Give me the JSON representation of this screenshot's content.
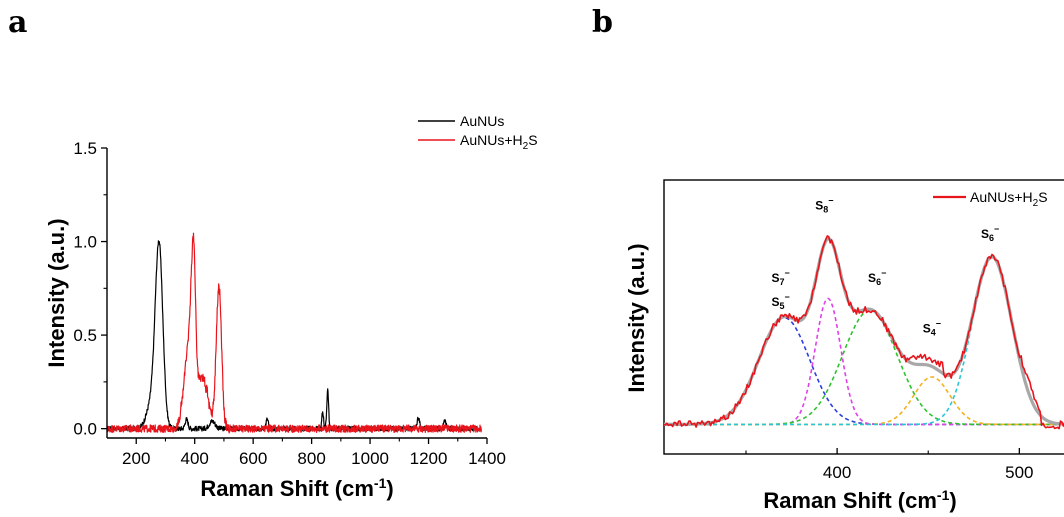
{
  "panels": {
    "a": {
      "letter": "a"
    },
    "b": {
      "letter": "b"
    }
  },
  "chart_data": [
    {
      "type": "line",
      "panel": "a",
      "xlabel_main": "Raman Shift (cm",
      "xlabel_sup": "-1",
      "xlabel_end": ")",
      "ylabel": "Intensity (a.u.)",
      "xlim": [
        100,
        1400
      ],
      "ylim": [
        -0.05,
        1.5
      ],
      "xticks": [
        200,
        400,
        600,
        800,
        1000,
        1200,
        1400
      ],
      "xtick_labels": [
        "200",
        "400",
        "600",
        "800",
        "1000",
        "1200",
        "1400"
      ],
      "yticks": [
        0.0,
        0.5,
        1.0,
        1.5
      ],
      "ytick_labels": [
        "0.0",
        "0.5",
        "1.0",
        "1.5"
      ],
      "legend_position": "top-right",
      "series": [
        {
          "name": "AuNUs",
          "color": "#000000",
          "noise": 0.013,
          "peaks": [
            {
              "x": 278,
              "height": 0.98,
              "width": 13
            },
            {
              "x": 250,
              "height": 0.12,
              "width": 16
            },
            {
              "x": 372,
              "height": 0.05,
              "width": 5
            },
            {
              "x": 460,
              "height": 0.04,
              "width": 10
            },
            {
              "x": 648,
              "height": 0.05,
              "width": 4
            },
            {
              "x": 838,
              "height": 0.09,
              "width": 3
            },
            {
              "x": 855,
              "height": 0.21,
              "width": 3
            },
            {
              "x": 1165,
              "height": 0.06,
              "width": 4
            },
            {
              "x": 1255,
              "height": 0.05,
              "width": 4
            }
          ]
        },
        {
          "name_main": "AuNUs+H",
          "name_sub": "2",
          "name_end": "S",
          "color": "#e8141c",
          "noise": 0.02,
          "peaks": [
            {
              "x": 362,
              "height": 0.12,
              "width": 10
            },
            {
              "x": 382,
              "height": 0.45,
              "width": 12
            },
            {
              "x": 396,
              "height": 0.7,
              "width": 7
            },
            {
              "x": 425,
              "height": 0.28,
              "width": 20
            },
            {
              "x": 483,
              "height": 0.75,
              "width": 9
            }
          ]
        }
      ]
    },
    {
      "type": "line",
      "panel": "b",
      "xlabel_main": "Raman Shift (cm",
      "xlabel_sup": "-1",
      "xlabel_end": ")",
      "ylabel": "Intensity (a.u.)",
      "xlim": [
        305,
        530
      ],
      "ylim": [
        -0.2,
        1.65
      ],
      "xticks": [
        400,
        500
      ],
      "xtick_labels": [
        "400",
        "500"
      ],
      "minor_xticks": [
        350,
        450
      ],
      "legend_position": "top-right",
      "legend": {
        "name_main": "AuNUs+H",
        "name_sub": "2",
        "name_end": "S",
        "color": "#e8141c"
      },
      "components": [
        {
          "label_main": "S",
          "label_sub": "7",
          "label_sup": "−",
          "center": 371,
          "height": 0.72,
          "width": 14,
          "color": "#2b3ee0"
        },
        {
          "label_main": "S",
          "label_sub": "8",
          "label_sup": "−",
          "center": 395,
          "height": 0.85,
          "width": 7,
          "color": "#e040e8"
        },
        {
          "label_main": "S",
          "label_sub": "6",
          "label_sup": "−",
          "center": 418,
          "height": 0.77,
          "width": 15,
          "color": "#2ec22e"
        },
        {
          "label_main": "S",
          "label_sub": "4",
          "label_sup": "−",
          "center": 452,
          "height": 0.32,
          "width": 10,
          "color": "#f2b21c"
        },
        {
          "label_main": "S",
          "label_sub": "6",
          "label_sup": "−",
          "center": 485,
          "height": 1.13,
          "width": 11,
          "color": "#2bc6d4"
        }
      ],
      "peak_labels": [
        {
          "main": "S",
          "sub": "7",
          "sup": "−",
          "x": 369,
          "y": 0.96
        },
        {
          "main": "S",
          "sub": "5",
          "sup": "−",
          "x": 369,
          "y": 0.8
        },
        {
          "main": "S",
          "sub": "8",
          "sup": "−",
          "x": 393,
          "y": 1.45
        },
        {
          "main": "S",
          "sub": "6",
          "sup": "−",
          "x": 422,
          "y": 0.96
        },
        {
          "main": "S",
          "sub": "4",
          "sup": "−",
          "x": 452,
          "y": 0.62
        },
        {
          "main": "S",
          "sub": "6",
          "sup": "−",
          "x": 484,
          "y": 1.26
        }
      ]
    }
  ]
}
